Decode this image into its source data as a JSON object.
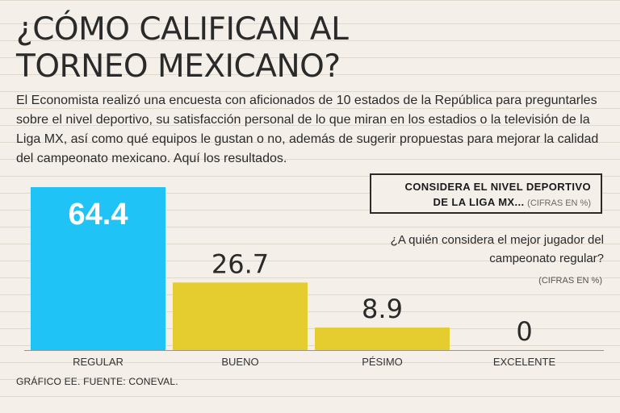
{
  "header": {
    "title_line1": "¿CÓMO CALIFICAN AL",
    "title_line2": "TORNEO MEXICANO?",
    "intro": "El Economista realizó una encuesta con aficionados de 10 estados de la República para preguntarles sobre el nivel deportivo, su satisfacción personal de lo que miran en los estadios o la televisión de la Liga MX, así como qué equipos le gustan o no, además de sugerir propuestas para mejorar la calidad del campeonato mexicano. Aquí los resultados."
  },
  "legend_box": {
    "line1": "CONSIDERA EL NIVEL DEPORTIVO",
    "line2": "DE LA LIGA MX...",
    "unit": "(CIFRAS EN %)"
  },
  "next_question": {
    "text": "¿A quién considera el mejor jugador del campeonato regular?",
    "unit": "(CIFRAS EN %)"
  },
  "footer": {
    "source": "GRÁFICO EE. FUENTE: CONEVAL."
  },
  "chart_data": {
    "type": "bar",
    "title": "CONSIDERA EL NIVEL DEPORTIVO DE LA LIGA MX...",
    "unit": "(CIFRAS EN %)",
    "categories": [
      "REGULAR",
      "BUENO",
      "PÉSIMO",
      "EXCELENTE"
    ],
    "values": [
      64.4,
      26.7,
      8.9,
      0
    ],
    "value_labels": [
      "64.4",
      "26.7",
      "8.9",
      "0"
    ],
    "colors": [
      "#1fc3f5",
      "#e6cd2f",
      "#e6cd2f",
      "#e6cd2f"
    ],
    "highlight_index": 0,
    "ylim": [
      0,
      64.4
    ],
    "grid": false
  }
}
